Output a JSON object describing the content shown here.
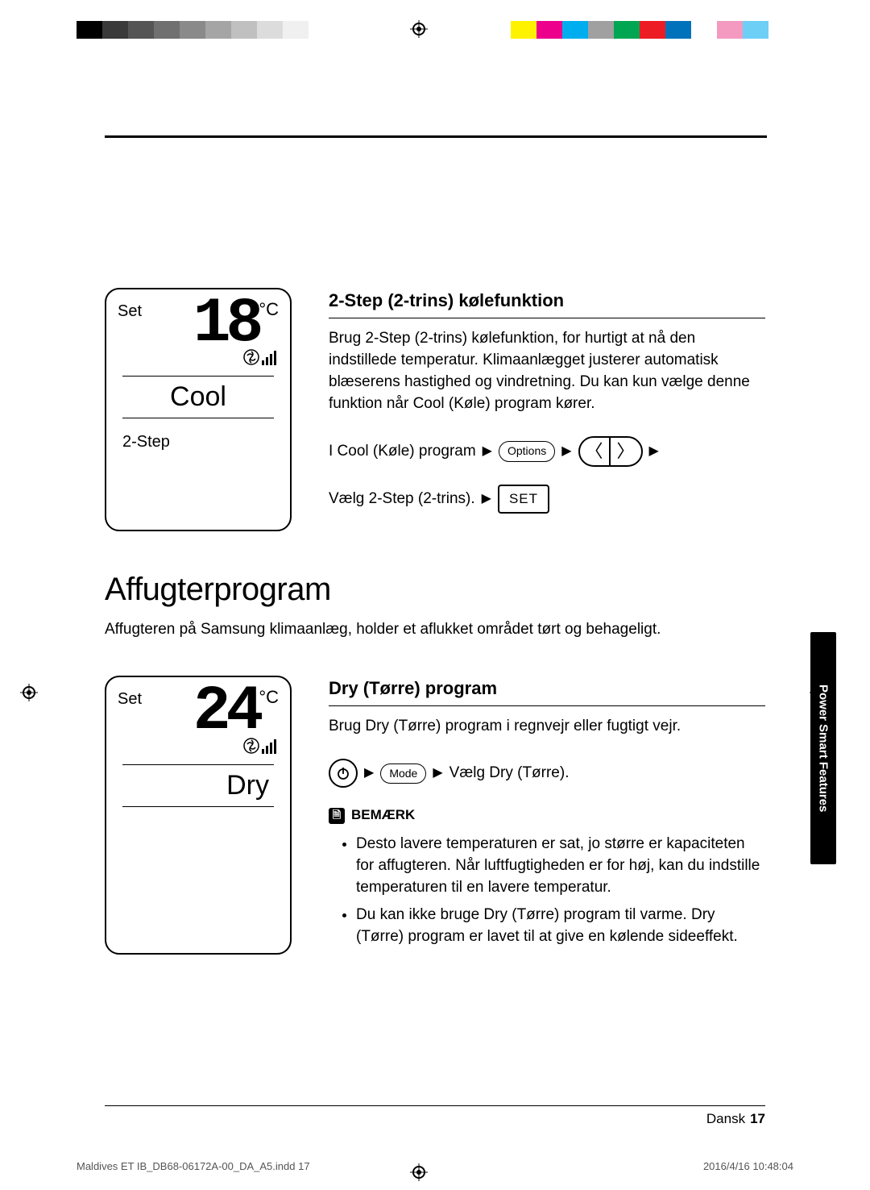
{
  "colorBars": {
    "left": [
      "#000000",
      "#3a3a3a",
      "#555555",
      "#707070",
      "#8a8a8a",
      "#a5a5a5",
      "#c0c0c0",
      "#dcdcdc",
      "#f0f0f0",
      "#ffffff"
    ],
    "right": [
      "#fff200",
      "#ec008c",
      "#00adef",
      "#a0a0a0",
      "#00a651",
      "#ed1c24",
      "#0072bc",
      "#ffffff",
      "#f49ac1",
      "#6dcff6"
    ]
  },
  "section1": {
    "display": {
      "set": "Set",
      "temp": "18",
      "unit": "°C",
      "mode": "Cool",
      "sub": "2-Step"
    },
    "heading": "2-Step (2-trins) kølefunktion",
    "body": "Brug 2-Step (2-trins) kølefunktion, for hurtigt at nå den indstillede temperatur. Klimaanlægget justerer automatisk blæserens hastighed og vindretning. Du kan kun vælge denne funktion når Cool (Køle) program kører.",
    "seq1_lead": "I Cool (Køle) program",
    "btn_options": "Options",
    "seq2_lead": "Vælg 2-Step (2-trins).",
    "btn_set": "SET"
  },
  "mainHeading": "Affugterprogram",
  "intro": "Affugteren på Samsung klimaanlæg, holder et aflukket området tørt og behageligt.",
  "section2": {
    "display": {
      "set": "Set",
      "temp": "24",
      "unit": "°C",
      "mode": "Dry"
    },
    "heading": "Dry (Tørre) program",
    "body": "Brug Dry (Tørre) program i regnvejr eller fugtigt vejr.",
    "btn_mode": "Mode",
    "seq_tail": "Vælg Dry (Tørre).",
    "note_label": "BEMÆRK",
    "notes": [
      "Desto lavere temperaturen er sat, jo større er kapaciteten for affugteren. Når luftfugtigheden er for høj, kan du indstille temperaturen til en lavere temperatur.",
      "Du kan ikke bruge Dry (Tørre) program til varme. Dry (Tørre) program er lavet til at give en kølende sideeffekt."
    ]
  },
  "sideTab": "Power Smart Features",
  "footer": {
    "lang": "Dansk",
    "page": "17"
  },
  "meta": {
    "file": "Maldives ET IB_DB68-06172A-00_DA_A5.indd   17",
    "ts": "2016/4/16   10:48:04"
  }
}
